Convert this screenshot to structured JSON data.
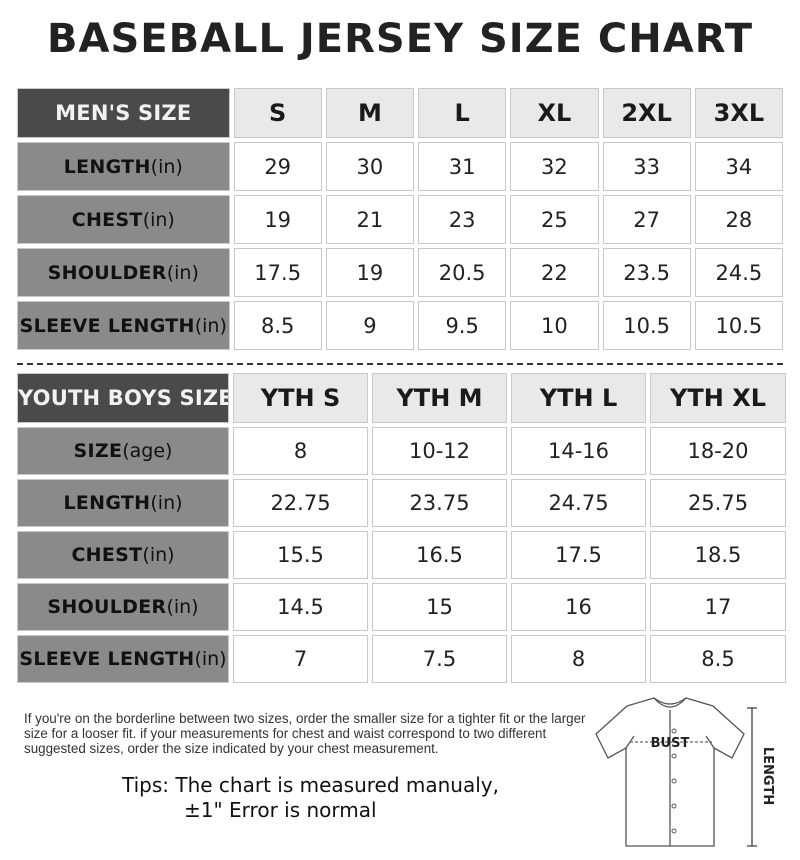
{
  "title": "BASEBALL JERSEY SIZE CHART",
  "men": {
    "corner": "MEN'S SIZE",
    "sizes": [
      "S",
      "M",
      "L",
      "XL",
      "2XL",
      "3XL"
    ],
    "rows": [
      {
        "label": "LENGTH",
        "unit": "(in)",
        "values": [
          "29",
          "30",
          "31",
          "32",
          "33",
          "34"
        ]
      },
      {
        "label": "CHEST",
        "unit": "(in)",
        "values": [
          "19",
          "21",
          "23",
          "25",
          "27",
          "28"
        ]
      },
      {
        "label": "SHOULDER",
        "unit": "(in)",
        "values": [
          "17.5",
          "19",
          "20.5",
          "22",
          "23.5",
          "24.5"
        ]
      },
      {
        "label": "SLEEVE LENGTH",
        "unit": "(in)",
        "values": [
          "8.5",
          "9",
          "9.5",
          "10",
          "10.5",
          "10.5"
        ]
      }
    ]
  },
  "youth": {
    "corner": "YOUTH BOYS SIZE",
    "sizes": [
      "YTH S",
      "YTH M",
      "YTH L",
      "YTH XL"
    ],
    "rows": [
      {
        "label": "SIZE",
        "unit": "(age)",
        "values": [
          "8",
          "10-12",
          "14-16",
          "18-20"
        ]
      },
      {
        "label": "LENGTH",
        "unit": "(in)",
        "values": [
          "22.75",
          "23.75",
          "24.75",
          "25.75"
        ]
      },
      {
        "label": "CHEST",
        "unit": "(in)",
        "values": [
          "15.5",
          "16.5",
          "17.5",
          "18.5"
        ]
      },
      {
        "label": "SHOULDER",
        "unit": "(in)",
        "values": [
          "14.5",
          "15",
          "16",
          "17"
        ]
      },
      {
        "label": "SLEEVE LENGTH",
        "unit": "(in)",
        "values": [
          "7",
          "7.5",
          "8",
          "8.5"
        ]
      }
    ]
  },
  "note": "If you're on the borderline between two sizes, order the smaller size for a tighter fit or the larger size for a looser fit. if your measurements for chest and waist correspond to two different suggested sizes, order the size indicated by your chest measurement.",
  "tips_line1": "Tips: The chart is measured manualy,",
  "tips_line2": "±1\" Error is normal",
  "diagram": {
    "bust_label": "BUST",
    "length_label": "LENGTH"
  }
}
